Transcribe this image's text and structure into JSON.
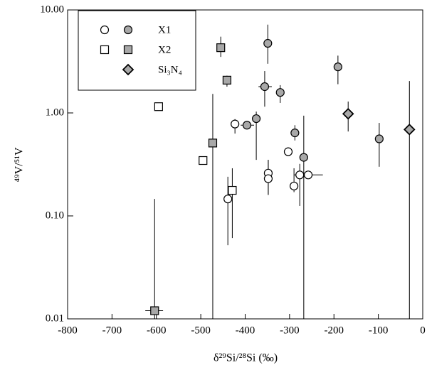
{
  "chart_data": {
    "type": "scatter",
    "xlabel": "δ²⁹Si/²⁸Si (‰)",
    "ylabel": "⁴⁹V/⁵¹V",
    "xlim": [
      -800,
      0
    ],
    "xticks": [
      -800,
      -700,
      -600,
      -500,
      -400,
      -300,
      -200,
      -100,
      0
    ],
    "ylim": [
      0.01,
      10
    ],
    "ylog": true,
    "yticks": [
      0.01,
      {
        "value": 0.1,
        "label": "0.10"
      },
      {
        "value": 1,
        "label": "1.00"
      },
      {
        "value": 10,
        "label": "10.00"
      }
    ],
    "legend": "upper left",
    "series": [
      {
        "name": "X1",
        "marker": "circle",
        "groups": [
          {
            "color": "#ffffff",
            "x": [
              -423,
              -303,
              -348,
              -348,
              -439,
              -290,
              -277,
              -258
            ],
            "values": [
              0.78,
              0.42,
              0.26,
              0.23,
              0.146,
              0.195,
              0.25,
              0.25
            ],
            "y_low": [
              0.63,
              null,
              0.16,
              0.16,
              0.052,
              0.17,
              0.125,
              null
            ],
            "y_high": [
              0.87,
              null,
              0.35,
              0.35,
              0.24,
              0.29,
              0.32,
              null
            ],
            "x_low": [
              null,
              null,
              null,
              null,
              null,
              null,
              null,
              -290
            ],
            "x_high": [
              null,
              null,
              null,
              null,
              null,
              null,
              null,
              -225
            ]
          },
          {
            "color": "#a8a8a8",
            "x": [
              -349,
              -356,
              -321,
              -375,
              -396,
              -288,
              -268,
              -191,
              -98
            ],
            "values": [
              4.74,
              1.8,
              1.58,
              0.88,
              0.76,
              0.64,
              0.37,
              2.8,
              0.56
            ],
            "y_low": [
              3.0,
              1.15,
              1.25,
              0.35,
              null,
              0.54,
              0.01,
              1.9,
              0.3
            ],
            "y_high": [
              7.2,
              2.55,
              1.86,
              1.03,
              null,
              0.76,
              0.94,
              3.6,
              0.8
            ],
            "x_low": [
              null,
              -370,
              null,
              null,
              -410,
              null,
              null,
              null,
              null
            ],
            "x_high": [
              null,
              -340,
              null,
              null,
              -380,
              null,
              null,
              null,
              null
            ]
          }
        ]
      },
      {
        "name": "X2",
        "marker": "square",
        "groups": [
          {
            "color": "#ffffff",
            "x": [
              -595,
              -495,
              -429
            ],
            "values": [
              1.15,
              0.345,
              0.177
            ],
            "y_low": [
              null,
              null,
              0.061
            ],
            "y_high": [
              null,
              null,
              0.29
            ],
            "x_low": [
              null,
              null,
              null
            ],
            "x_high": [
              null,
              null,
              null
            ]
          },
          {
            "color": "#a8a8a8",
            "x": [
              -455,
              -441,
              -473,
              -604
            ],
            "values": [
              4.3,
              2.08,
              0.51,
              0.012
            ],
            "y_low": [
              3.5,
              1.8,
              0.01,
              0.01
            ],
            "y_high": [
              5.5,
              2.3,
              1.53,
              0.146
            ],
            "x_low": [
              null,
              null,
              null,
              -625
            ],
            "x_high": [
              null,
              null,
              null,
              -585
            ]
          }
        ]
      },
      {
        "name": "Si₃N₄",
        "marker": "diamond",
        "groups": [
          {
            "color": "#a8a8a8",
            "x": [
              -168,
              -30
            ],
            "values": [
              0.98,
              0.69
            ],
            "y_low": [
              0.66,
              0.01
            ],
            "y_high": [
              1.29,
              2.04
            ],
            "x_low": [
              null,
              null
            ],
            "x_high": [
              null,
              null
            ]
          }
        ]
      }
    ]
  }
}
